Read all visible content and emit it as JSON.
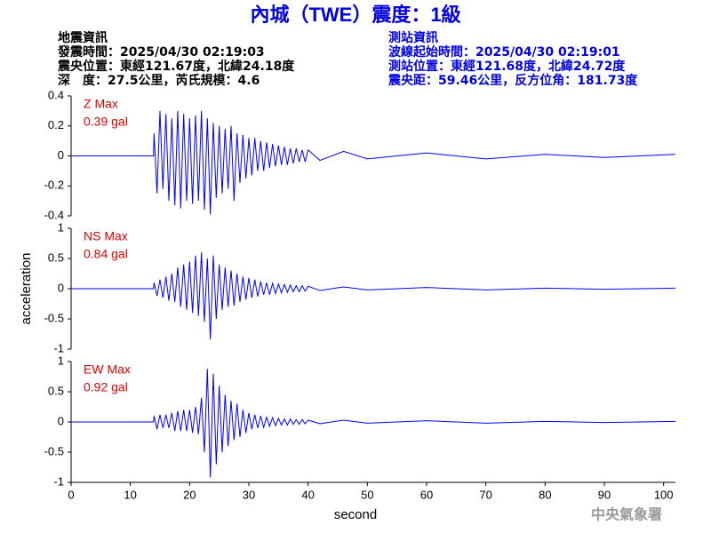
{
  "title": "內城（TWE）震度：1級",
  "event_info": [
    "地震資訊",
    "發震時間：2025/04/30 02:19:03",
    "震央位置：東經121.67度，北緯24.18度",
    "深　度：27.5公里，芮氏規模：4.6"
  ],
  "station_info": [
    "測站資訊",
    "波線起始時間：2025/04/30 02:19:01",
    "測站位置：東經121.68度，北緯24.72度",
    "震央距：59.46公里，反方位角：181.73度"
  ],
  "ylabel": "acceleration",
  "xlabel": "second",
  "footer": "中央氣象署",
  "chart_data": [
    {
      "type": "line",
      "label": "Z Max",
      "max_label": "0.39 gal",
      "label_color": "#e00000",
      "color": "#0000ff",
      "xlim": [
        0,
        102
      ],
      "ylim": [
        -0.4,
        0.4
      ],
      "yticks": [
        -0.4,
        -0.2,
        0,
        0.2,
        0.4
      ],
      "x": [
        0,
        13.9,
        14,
        14.5,
        15,
        15.5,
        16,
        16.5,
        17,
        17.5,
        18,
        18.5,
        19,
        19.5,
        20,
        20.5,
        21,
        21.5,
        22,
        22.5,
        23,
        23.5,
        24,
        24.5,
        25,
        25.5,
        26,
        26.5,
        27,
        27.5,
        28,
        28.5,
        29,
        29.5,
        30,
        30.5,
        31,
        31.5,
        32,
        32.5,
        33,
        33.5,
        34,
        34.5,
        35,
        35.5,
        36,
        36.5,
        37,
        37.5,
        38,
        38.5,
        39,
        39.5,
        40,
        42,
        46,
        50,
        60,
        70,
        80,
        90,
        102
      ],
      "values": [
        0,
        0,
        0.15,
        -0.25,
        0.3,
        -0.22,
        0.28,
        -0.3,
        0.25,
        -0.33,
        0.3,
        -0.35,
        0.28,
        -0.3,
        0.25,
        -0.32,
        0.27,
        -0.3,
        0.3,
        -0.36,
        0.25,
        -0.39,
        0.22,
        -0.28,
        0.2,
        -0.25,
        0.18,
        -0.22,
        0.2,
        -0.3,
        0.15,
        -0.18,
        0.14,
        -0.15,
        0.12,
        -0.13,
        0.12,
        -0.1,
        0.1,
        -0.1,
        0.09,
        -0.08,
        0.08,
        -0.07,
        0.07,
        -0.06,
        0.06,
        -0.06,
        0.05,
        -0.05,
        0.05,
        -0.04,
        0.04,
        -0.04,
        0.04,
        -0.03,
        0.03,
        -0.02,
        0.02,
        -0.02,
        0.01,
        -0.01,
        0.01
      ]
    },
    {
      "type": "line",
      "label": "NS Max",
      "max_label": "0.84 gal",
      "label_color": "#e00000",
      "color": "#0000ff",
      "xlim": [
        0,
        102
      ],
      "ylim": [
        -1,
        1
      ],
      "yticks": [
        -1,
        -0.5,
        0,
        0.5,
        1
      ],
      "x": [
        0,
        13.9,
        14,
        14.5,
        15,
        15.5,
        16,
        16.5,
        17,
        17.5,
        18,
        18.5,
        19,
        19.5,
        20,
        20.5,
        21,
        21.5,
        22,
        22.5,
        23,
        23.5,
        24,
        24.5,
        25,
        25.5,
        26,
        26.5,
        27,
        27.5,
        28,
        28.5,
        29,
        29.5,
        30,
        30.5,
        31,
        31.5,
        32,
        32.5,
        33,
        33.5,
        34,
        34.5,
        35,
        35.5,
        36,
        36.5,
        37,
        37.5,
        38,
        38.5,
        39,
        39.5,
        40,
        42,
        46,
        50,
        60,
        70,
        80,
        90,
        102
      ],
      "values": [
        0,
        0,
        0.1,
        -0.12,
        0.15,
        -0.15,
        0.2,
        -0.2,
        0.25,
        -0.22,
        0.35,
        -0.3,
        0.4,
        -0.35,
        0.45,
        -0.4,
        0.55,
        -0.45,
        0.6,
        -0.55,
        0.5,
        -0.84,
        0.55,
        -0.5,
        0.4,
        -0.35,
        0.35,
        -0.3,
        0.3,
        -0.28,
        0.25,
        -0.22,
        0.2,
        -0.18,
        0.18,
        -0.15,
        0.15,
        -0.13,
        0.12,
        -0.1,
        0.1,
        -0.1,
        0.09,
        -0.08,
        0.08,
        -0.07,
        0.07,
        -0.06,
        0.06,
        -0.05,
        0.05,
        -0.05,
        0.05,
        -0.04,
        0.04,
        -0.03,
        0.03,
        -0.02,
        0.02,
        -0.02,
        0.01,
        -0.01,
        0.01
      ]
    },
    {
      "type": "line",
      "label": "EW Max",
      "max_label": "0.92 gal",
      "label_color": "#e00000",
      "color": "#0000ff",
      "xlim": [
        0,
        102
      ],
      "ylim": [
        -1,
        1
      ],
      "yticks": [
        -1,
        -0.5,
        0,
        0.5,
        1
      ],
      "xticks": [
        0,
        10,
        20,
        30,
        40,
        50,
        60,
        70,
        80,
        90,
        100
      ],
      "x": [
        0,
        13.9,
        14,
        14.5,
        15,
        15.5,
        16,
        16.5,
        17,
        17.5,
        18,
        18.5,
        19,
        19.5,
        20,
        20.5,
        21,
        21.5,
        22,
        22.5,
        23,
        23.5,
        24,
        24.5,
        25,
        25.5,
        26,
        26.5,
        27,
        27.5,
        28,
        28.5,
        29,
        29.5,
        30,
        30.5,
        31,
        31.5,
        32,
        32.5,
        33,
        33.5,
        34,
        34.5,
        35,
        35.5,
        36,
        36.5,
        37,
        37.5,
        38,
        38.5,
        39,
        39.5,
        40,
        42,
        46,
        50,
        60,
        70,
        80,
        90,
        102
      ],
      "values": [
        0,
        0,
        0.1,
        -0.12,
        0.12,
        -0.1,
        0.12,
        -0.1,
        0.15,
        -0.15,
        0.18,
        -0.15,
        0.2,
        -0.15,
        0.2,
        -0.18,
        0.25,
        -0.2,
        0.4,
        -0.5,
        0.88,
        -0.92,
        0.8,
        -0.7,
        0.6,
        -0.5,
        0.45,
        -0.4,
        0.35,
        -0.3,
        0.3,
        -0.25,
        0.2,
        -0.18,
        0.15,
        -0.12,
        0.12,
        -0.1,
        0.1,
        -0.09,
        0.08,
        -0.07,
        0.07,
        -0.06,
        0.06,
        -0.05,
        0.05,
        -0.05,
        0.05,
        -0.04,
        0.04,
        -0.04,
        0.04,
        -0.03,
        0.03,
        -0.03,
        0.03,
        -0.02,
        0.02,
        -0.02,
        0.01,
        -0.01,
        0.01
      ]
    }
  ]
}
